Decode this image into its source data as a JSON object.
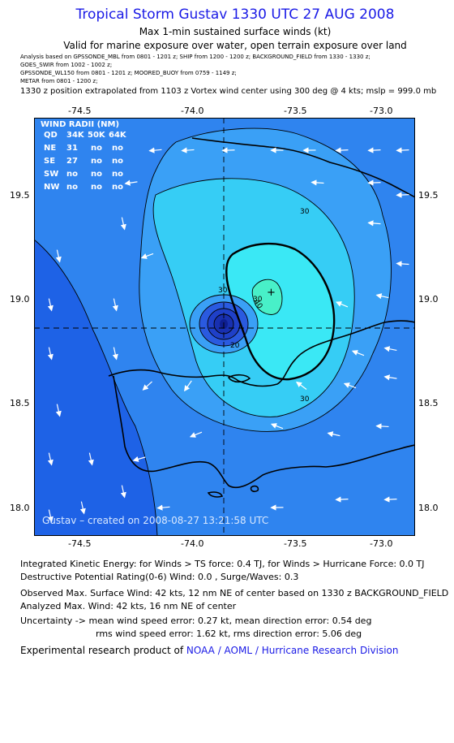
{
  "header": {
    "title": "Tropical Storm Gustav 1330 UTC 27 AUG 2008",
    "subtitle1": "Max 1-min sustained surface winds (kt)",
    "subtitle2": "Valid for marine exposure over water, open terrain exposure over land",
    "analysis_lines": [
      "Analysis based on  GPSSONDE_MBL from 0801 - 1201 z;  SHIP from 1200 - 1200 z;  BACKGROUND_FIELD from 1330 - 1330 z;",
      "GOES_SWIR from 1002 - 1002 z;",
      "GPSSONDE_WL150 from 0801 - 1201 z;   MOORED_BUOY from 0759 - 1149 z;",
      "METAR from 0801 - 1200 z;"
    ],
    "position_note": "1330 z position extrapolated from 1103 z Vortex wind center using 300 deg @ 4 kts; mslp = 999.0 mb"
  },
  "axes": {
    "x_ticks": [
      "-74.5",
      "-74.0",
      "-73.5",
      "-73.0"
    ],
    "y_ticks": [
      "19.5",
      "19.0",
      "18.5",
      "18.0"
    ],
    "lon_range": [
      -74.85,
      -72.85
    ],
    "lat_range": [
      17.85,
      19.85
    ]
  },
  "storm_center": {
    "lon": -73.82,
    "lat": 18.87
  },
  "wind_radii": {
    "title": "WIND RADII (NM)",
    "header": [
      "QD",
      "34K",
      "50K",
      "64K"
    ],
    "rows": [
      [
        "NE",
        "31",
        "no",
        "no"
      ],
      [
        "SE",
        "27",
        "no",
        "no"
      ],
      [
        "SW",
        "no",
        "no",
        "no"
      ],
      [
        "NW",
        "no",
        "no",
        "no"
      ]
    ]
  },
  "contour_labels": [
    "30",
    "30",
    "30",
    "40",
    "20",
    "30"
  ],
  "creation_note": "Gustav – created on 2008-08-27 13:21:58 UTC",
  "colors": {
    "band_10": "#1e62e6",
    "band_15": "#2f84ef",
    "band_20": "#3aa0f6",
    "band_30": "#36cdf5",
    "band_35": "#3ae8f5",
    "band_40": "#48f0c8",
    "core": [
      "#2a5ae0",
      "#1f40c8",
      "#1830b0",
      "#0e1e90"
    ],
    "title": "#1a1ae6"
  },
  "footer": {
    "ike": "Integrated Kinetic Energy:  for Winds > TS force: 0.4 TJ,  for Winds > Hurricane Force: 0.0 TJ",
    "dpr": "Destructive Potential Rating(0-6)   Wind: 0.0 , Surge/Waves: 0.3",
    "obs_max": "Observed Max. Surface Wind: 42 kts, 12 nm NE of center based on 1330 z BACKGROUND_FIELD",
    "analyzed_max": "Analyzed Max. Wind: 42 kts, 16 nm NE of center",
    "uncertainty1": "Uncertainty -> mean wind speed error: 0.27 kt,   mean direction error: 0.54 deg",
    "uncertainty2": "rms wind speed error: 1.62 kt,   rms direction error: 5.06 deg",
    "research_prefix": "Experimental research product of ",
    "research_link": "NOAA / AOML / Hurricane Research Division"
  }
}
